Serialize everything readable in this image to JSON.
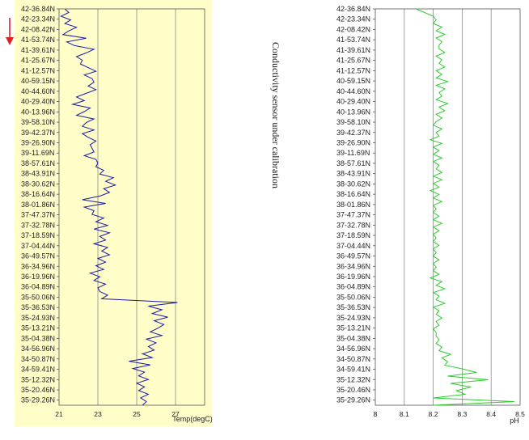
{
  "chart_data": [
    {
      "type": "line",
      "xlabel": "Temp(degC)",
      "ylabel": "",
      "xlim": [
        21,
        28.5
      ],
      "xticks": [
        "21",
        "23",
        "25",
        "27"
      ],
      "xtick_values": [
        21,
        23,
        25,
        27
      ],
      "y_tick_labels": [
        "42-36.84N",
        "42-23.34N",
        "42-08.42N",
        "41-53.74N",
        "41-39.61N",
        "41-25.67N",
        "41-12.57N",
        "40-59.15N",
        "40-44.60N",
        "40-29.40N",
        "40-13.96N",
        "39-58.10N",
        "39-42.37N",
        "39-26.90N",
        "39-11.69N",
        "38-57.61N",
        "38-43.91N",
        "38-30.62N",
        "38-16.64N",
        "38-01.86N",
        "37-47.37N",
        "37-32.78N",
        "37-18.59N",
        "37-04.44N",
        "36-49.57N",
        "36-34.96N",
        "36-19.96N",
        "36-04.89N",
        "35-50.06N",
        "35-36.53N",
        "35-24.93N",
        "35-13.21N",
        "35-04.38N",
        "34-56.96N",
        "34-50.87N",
        "34-59.41N",
        "35-12.32N",
        "35-20.46N",
        "35-29.26N"
      ],
      "grid": true,
      "background": "#fffdc8",
      "line_color": "#1a1aaa",
      "series": [
        {
          "values": [
            21.3,
            21.5,
            21.1,
            21.6,
            21.3,
            21.9,
            21.5,
            21.2,
            22.4,
            21.4,
            21.8,
            22.8,
            22.4,
            21.9,
            22.2,
            22.1,
            22.5,
            22.9,
            22.3,
            22.7,
            22.8,
            22.5,
            22.9,
            22.4,
            21.9,
            22.3,
            21.7,
            22.6,
            22.3,
            21.9,
            22.8,
            22.4,
            22.2,
            22.8,
            22.2,
            22.5,
            22.9,
            22.6,
            22.7,
            22.8,
            22.3,
            22.9,
            23.0,
            22.9,
            23.3,
            23.1,
            23.8,
            23.4,
            23.9,
            23.3,
            23.6,
            23.1,
            22.2,
            23.4,
            22.3,
            22.8,
            22.7,
            23.3,
            22.9,
            23.5,
            22.8,
            23.6,
            23.1,
            23.4,
            22.8,
            23.5,
            23.2,
            23.6,
            23.0,
            23.4,
            22.9,
            23.3,
            22.6,
            23.1,
            22.8,
            23.4,
            23.0,
            23.1,
            23.5,
            23.2,
            27.1,
            25.6,
            26.3,
            25.8,
            26.6,
            25.9,
            26.4,
            26.1,
            25.7,
            26.3,
            25.5,
            26.0,
            25.6,
            25.9,
            25.3,
            25.8,
            24.6,
            25.7,
            24.8,
            25.4,
            25.1,
            25.6,
            25.0,
            25.4,
            25.1,
            25.6,
            25.2,
            25.5,
            25.3
          ]
        }
      ]
    },
    {
      "type": "line",
      "xlabel": "pH",
      "ylabel": "",
      "xlim": [
        8,
        8.5
      ],
      "xticks": [
        "8",
        "8.1",
        "8.2",
        "8.3",
        "8.4",
        "8.5"
      ],
      "xtick_values": [
        8,
        8.1,
        8.2,
        8.3,
        8.4,
        8.5
      ],
      "y_tick_labels": [
        "42-36.84N",
        "42-23.34N",
        "42-08.42N",
        "41-53.74N",
        "41-39.61N",
        "41-25.67N",
        "41-12.57N",
        "40-59.15N",
        "40-44.60N",
        "40-29.40N",
        "40-13.96N",
        "39-58.10N",
        "39-42.37N",
        "39-26.90N",
        "39-11.69N",
        "38-57.61N",
        "38-43.91N",
        "38-30.62N",
        "38-16.64N",
        "38-01.86N",
        "37-47.37N",
        "37-32.78N",
        "37-18.59N",
        "37-04.44N",
        "36-49.57N",
        "36-34.96N",
        "36-19.96N",
        "36-04.89N",
        "35-50.06N",
        "35-36.53N",
        "35-24.93N",
        "35-13.21N",
        "35-04.38N",
        "34-56.96N",
        "34-50.87N",
        "34-59.41N",
        "35-12.32N",
        "35-20.46N",
        "35-29.26N"
      ],
      "grid": true,
      "background": "#ffffff",
      "line_color": "#2ecc2e",
      "series": [
        {
          "values": [
            8.14,
            8.17,
            8.2,
            8.21,
            8.2,
            8.23,
            8.21,
            8.24,
            8.21,
            8.23,
            8.22,
            8.22,
            8.24,
            8.21,
            8.23,
            8.22,
            8.24,
            8.21,
            8.23,
            8.21,
            8.25,
            8.21,
            8.24,
            8.22,
            8.23,
            8.21,
            8.25,
            8.22,
            8.24,
            8.21,
            8.23,
            8.21,
            8.2,
            8.23,
            8.21,
            8.22,
            8.19,
            8.23,
            8.2,
            8.22,
            8.2,
            8.23,
            8.2,
            8.22,
            8.21,
            8.23,
            8.2,
            8.23,
            8.2,
            8.22,
            8.19,
            8.22,
            8.2,
            8.23,
            8.2,
            8.21,
            8.2,
            8.22,
            8.2,
            8.23,
            8.2,
            8.22,
            8.2,
            8.21,
            8.2,
            8.22,
            8.2,
            8.21,
            8.2,
            8.22,
            8.2,
            8.21,
            8.2,
            8.22,
            8.19,
            8.23,
            8.21,
            8.24,
            8.2,
            8.22,
            8.21,
            8.24,
            8.2,
            8.22,
            8.21,
            8.23,
            8.21,
            8.22,
            8.2,
            8.21,
            8.21,
            8.22,
            8.21,
            8.23,
            8.22,
            8.26,
            8.23,
            8.25,
            8.24,
            8.3,
            8.35,
            8.25,
            8.39,
            8.26,
            8.33,
            8.28,
            8.31,
            8.2,
            8.48,
            8.2
          ]
        }
      ]
    }
  ],
  "side_note": "Conductivity sensor under calibration",
  "marker_color": "#dd2222"
}
